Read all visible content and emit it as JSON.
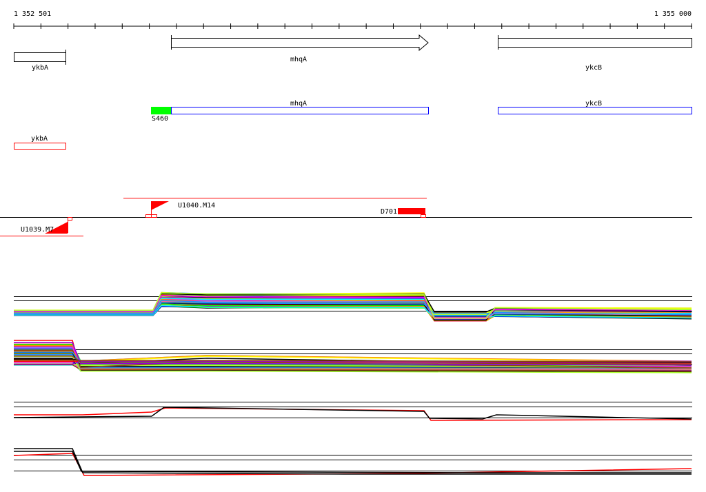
{
  "axis": {
    "start_label": "1 352 501",
    "end_label": "1 355 000",
    "start": 1352501,
    "end": 1355000,
    "tick_step": 100
  },
  "annotation_track": {
    "genes": [
      {
        "name": "ykbA",
        "strand": "none"
      },
      {
        "name": "mhqA",
        "strand": "+"
      },
      {
        "name": "ykcB",
        "strand": "none"
      }
    ]
  },
  "transcript_track": {
    "units": [
      {
        "name": "mhqA",
        "color": "#0000ff"
      },
      {
        "name": "ykcB",
        "color": "#0000ff"
      },
      {
        "name": "ykbA",
        "color": "#ff0000"
      }
    ],
    "start_site": {
      "label": "S460",
      "color": "#00ff00"
    }
  },
  "segments": {
    "upshifts": [
      {
        "label": "U1040.M14"
      },
      {
        "label": "U1039.M7"
      }
    ],
    "downshifts": [
      {
        "label": "D701"
      }
    ],
    "color": "#ff0000"
  },
  "expression_tracks": [
    {
      "strand": "+",
      "multi_condition": true
    },
    {
      "strand": "-",
      "multi_condition": true
    },
    {
      "strand": "+",
      "multi_condition": false,
      "colors": [
        "#000000",
        "#ff0000"
      ]
    },
    {
      "strand": "-",
      "multi_condition": false,
      "colors": [
        "#000000",
        "#ff0000"
      ]
    }
  ],
  "palette": [
    "#ff0000",
    "#00ff00",
    "#0000ff",
    "#ff00ff",
    "#00ffff",
    "#ffff00",
    "#ff8c00",
    "#808080",
    "#000000",
    "#8b4513",
    "#9400d3",
    "#ff69b4",
    "#adff2f",
    "#1e90ff"
  ]
}
